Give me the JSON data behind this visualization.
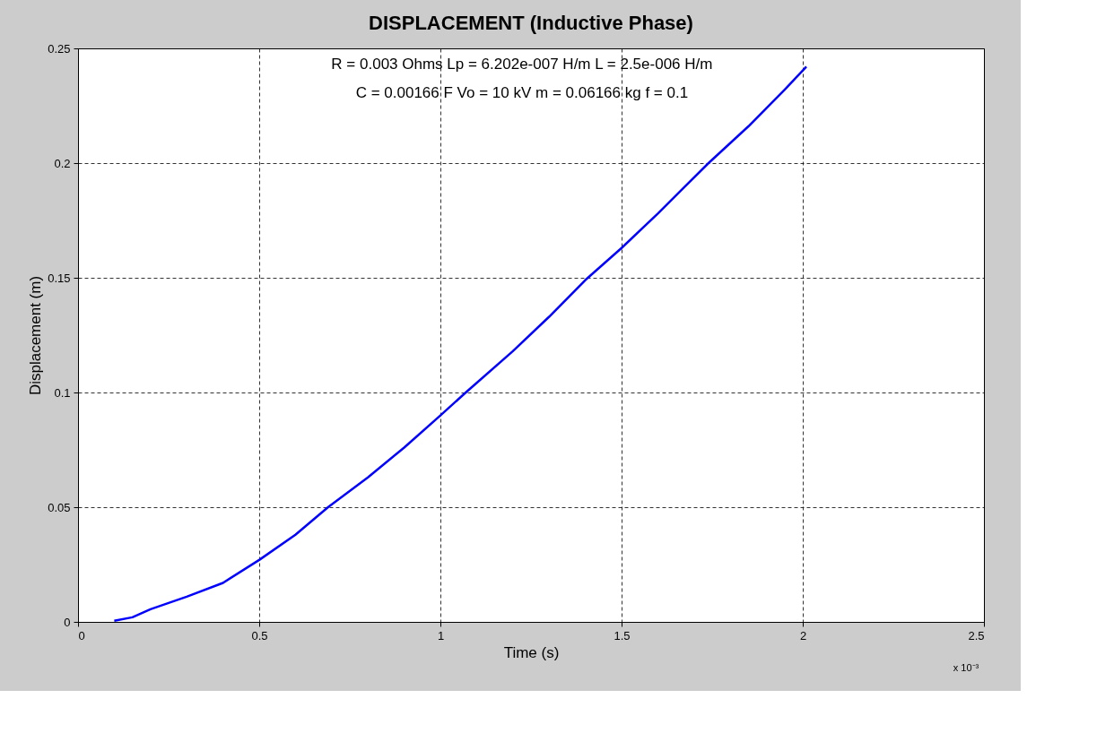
{
  "chart_data": {
    "type": "line",
    "title": "DISPLACEMENT (Inductive Phase)",
    "xlabel": "Time (s)",
    "ylabel": "Displacement (m)",
    "annotations": [
      "R = 0.003 Ohms   Lp = 6.202e-007 H/m   L = 2.5e-006 H/m",
      "C = 0.00166 F   Vo = 10 kV   m = 0.06166 kg   f = 0.1",
      "x 10⁻³"
    ],
    "x": [
      0.1,
      0.15,
      0.2,
      0.3,
      0.4,
      0.5,
      0.6,
      0.69,
      0.8,
      0.9,
      1.0,
      1.07,
      1.2,
      1.3,
      1.4,
      1.5,
      1.6,
      1.74,
      1.85,
      1.95,
      2.01
    ],
    "series": [
      {
        "color": "#0000ff",
        "values": [
          0.0005,
          0.002,
          0.0055,
          0.011,
          0.017,
          0.027,
          0.038,
          0.05,
          0.063,
          0.076,
          0.09,
          0.1,
          0.118,
          0.133,
          0.149,
          0.163,
          0.178,
          0.2,
          0.216,
          0.232,
          0.242
        ]
      }
    ],
    "xlim": [
      0,
      2.5
    ],
    "xticks": [
      0,
      0.5,
      1,
      1.5,
      2,
      2.5
    ],
    "ylim": [
      0,
      0.25
    ],
    "yticks": [
      0,
      0.05,
      0.1,
      0.15,
      0.2,
      0.25
    ],
    "grid": true,
    "line_style": "solid"
  }
}
